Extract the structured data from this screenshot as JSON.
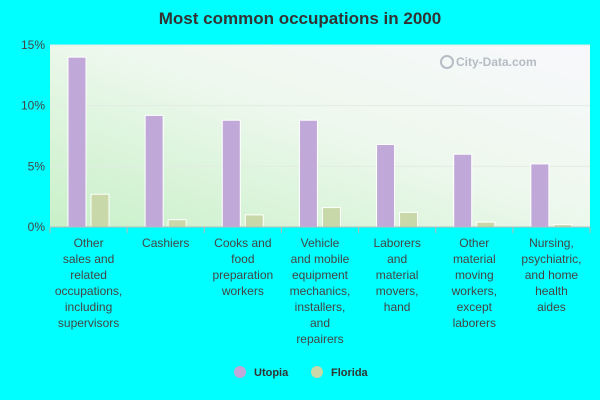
{
  "chart_data": {
    "type": "bar",
    "title": "Most common occupations in 2000",
    "categories": [
      [
        "Other",
        "sales and",
        "related",
        "occupations,",
        "including",
        "supervisors"
      ],
      [
        "Cashiers"
      ],
      [
        "Cooks and",
        "food",
        "preparation",
        "workers"
      ],
      [
        "Vehicle",
        "and mobile",
        "equipment",
        "mechanics,",
        "installers,",
        "and",
        "repairers"
      ],
      [
        "Laborers",
        "and",
        "material",
        "movers,",
        "hand"
      ],
      [
        "Other",
        "material",
        "moving",
        "workers,",
        "except",
        "laborers"
      ],
      [
        "Nursing,",
        "psychiatric,",
        "and home",
        "health",
        "aides"
      ]
    ],
    "series": [
      {
        "name": "Utopia",
        "color": "#c0a8d8",
        "values": [
          14.0,
          9.2,
          8.8,
          8.8,
          6.8,
          6.0,
          5.2
        ]
      },
      {
        "name": "Florida",
        "color": "#c8d8a8",
        "values": [
          2.7,
          0.6,
          1.0,
          1.6,
          1.2,
          0.4,
          0.2
        ]
      }
    ],
    "yticks": [
      "0%",
      "5%",
      "10%",
      "15%"
    ],
    "ylim": [
      0,
      15
    ],
    "grid": true,
    "legend_position": "bottom-center",
    "watermark": "City-Data.com"
  }
}
